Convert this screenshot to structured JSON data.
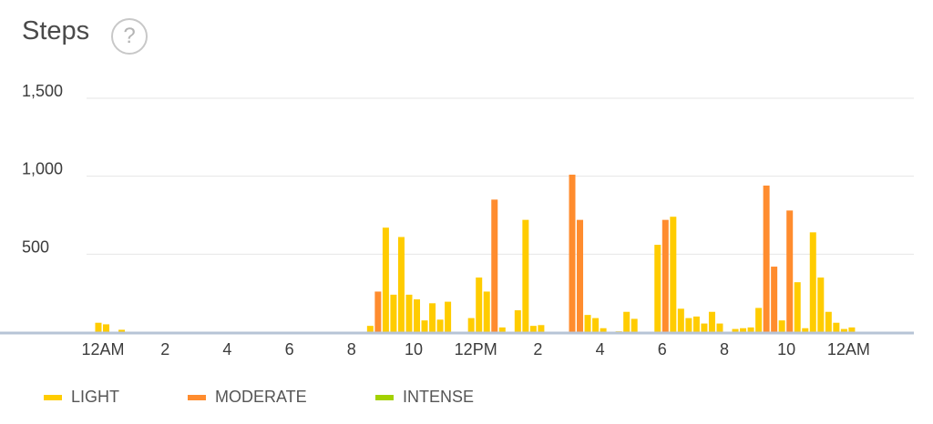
{
  "header": {
    "title": "Steps",
    "help_icon": "question-circle-icon",
    "help_glyph": "?"
  },
  "legend": [
    {
      "label": "LIGHT",
      "color": "#ffcc00"
    },
    {
      "label": "MODERATE",
      "color": "#ff8c2e"
    },
    {
      "label": "INTENSE",
      "color": "#a3d100"
    }
  ],
  "chart_data": {
    "type": "bar",
    "title": "Steps",
    "xlabel": "",
    "ylabel": "",
    "ylim": [
      0,
      1500
    ],
    "yticks": [
      500,
      1000,
      1500
    ],
    "ytick_labels": [
      "500",
      "1,000",
      "1,500"
    ],
    "xlim_hours": [
      -1.25,
      26.0
    ],
    "xticks_hours": [
      0,
      2,
      4,
      6,
      8,
      10,
      12,
      14,
      16,
      18,
      20,
      22,
      24
    ],
    "xtick_labels": [
      "12AM",
      "2",
      "4",
      "6",
      "8",
      "10",
      "12PM",
      "2",
      "4",
      "6",
      "8",
      "10",
      "12AM"
    ],
    "grid": true,
    "legend_position": "bottom-left",
    "series": [
      {
        "name": "LIGHT",
        "color": "#ffcc00",
        "points": [
          [
            -0.25,
            60
          ],
          [
            0.0,
            50
          ],
          [
            0.5,
            15
          ],
          [
            8.5,
            40
          ],
          [
            9.0,
            670
          ],
          [
            9.25,
            240
          ],
          [
            9.5,
            610
          ],
          [
            9.75,
            240
          ],
          [
            10.0,
            210
          ],
          [
            10.25,
            75
          ],
          [
            10.5,
            185
          ],
          [
            10.75,
            80
          ],
          [
            11.0,
            195
          ],
          [
            11.75,
            90
          ],
          [
            12.0,
            350
          ],
          [
            12.25,
            260
          ],
          [
            12.75,
            30
          ],
          [
            13.25,
            140
          ],
          [
            13.5,
            720
          ],
          [
            13.75,
            40
          ],
          [
            14.0,
            45
          ],
          [
            15.5,
            110
          ],
          [
            15.75,
            90
          ],
          [
            16.0,
            25
          ],
          [
            16.5,
            5
          ],
          [
            16.75,
            130
          ],
          [
            17.0,
            85
          ],
          [
            17.75,
            560
          ],
          [
            18.25,
            740
          ],
          [
            18.5,
            150
          ],
          [
            18.75,
            90
          ],
          [
            19.0,
            100
          ],
          [
            19.25,
            55
          ],
          [
            19.5,
            130
          ],
          [
            19.75,
            55
          ],
          [
            20.25,
            20
          ],
          [
            20.5,
            25
          ],
          [
            20.75,
            30
          ],
          [
            21.0,
            155
          ],
          [
            21.75,
            75
          ],
          [
            22.25,
            320
          ],
          [
            22.5,
            25
          ],
          [
            22.75,
            640
          ],
          [
            23.0,
            350
          ],
          [
            23.25,
            130
          ],
          [
            23.5,
            60
          ],
          [
            23.75,
            20
          ],
          [
            24.0,
            30
          ]
        ]
      },
      {
        "name": "MODERATE",
        "color": "#ff8c2e",
        "points": [
          [
            8.75,
            260
          ],
          [
            12.5,
            850
          ],
          [
            15.0,
            1010
          ],
          [
            15.25,
            720
          ],
          [
            18.0,
            720
          ],
          [
            21.25,
            940
          ],
          [
            21.5,
            420
          ],
          [
            22.0,
            780
          ]
        ]
      },
      {
        "name": "INTENSE",
        "color": "#a3d100",
        "points": []
      }
    ]
  }
}
